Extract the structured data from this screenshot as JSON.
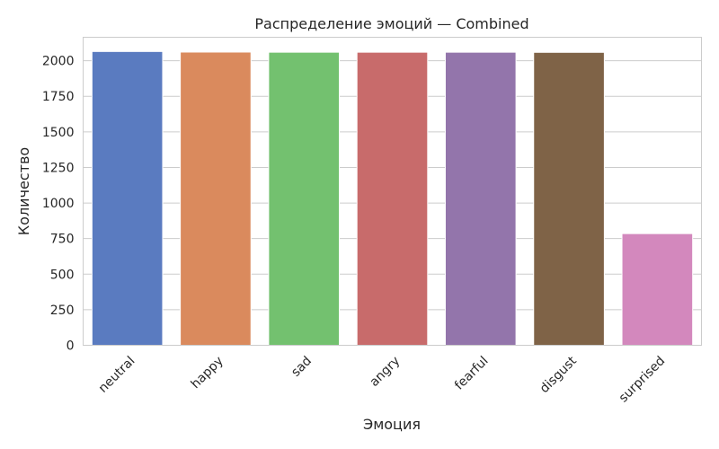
{
  "chart_data": {
    "type": "bar",
    "title": "Распределение эмоций — Combined",
    "xlabel": "Эмоция",
    "ylabel": "Количество",
    "categories": [
      "neutral",
      "happy",
      "sad",
      "angry",
      "fearful",
      "disgust",
      "surprised"
    ],
    "values": [
      2065,
      2061,
      2060,
      2060,
      2060,
      2059,
      785
    ],
    "colors": [
      "#5a7bc0",
      "#da8a5d",
      "#73c16f",
      "#c86b6b",
      "#9375ab",
      "#7f6347",
      "#d388bd"
    ],
    "ylim": [
      0,
      2165
    ],
    "yticks": [
      0,
      250,
      500,
      750,
      1000,
      1250,
      1500,
      1750,
      2000
    ],
    "grid": "horizontal",
    "legend": "none"
  }
}
